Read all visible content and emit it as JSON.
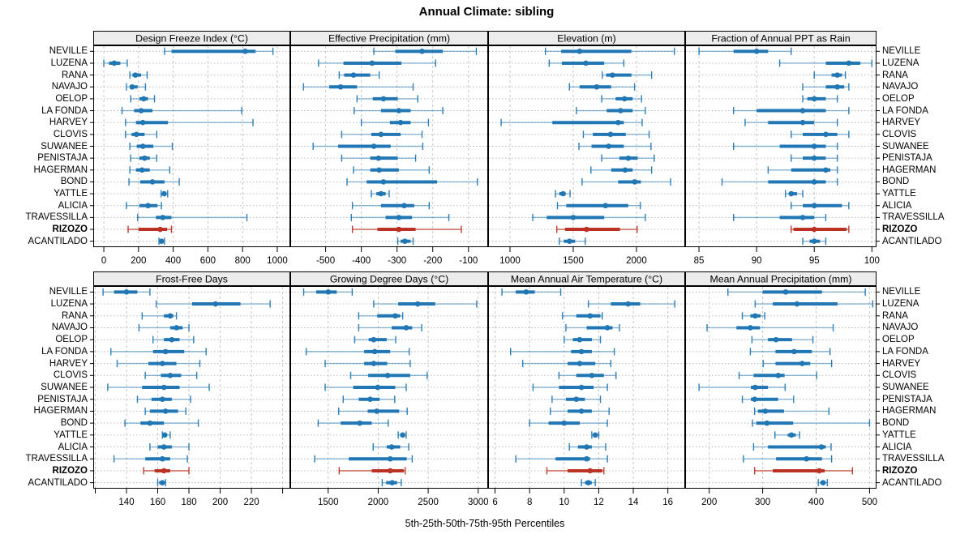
{
  "title": "Annual Climate: sibling",
  "footer": "5th-25th-50th-75th-95th Percentiles",
  "sites": [
    "NEVILLE",
    "LUZENA",
    "RANA",
    "NAVAJO",
    "OELOP",
    "LA FONDA",
    "HARVEY",
    "CLOVIS",
    "SUWANEE",
    "PENISTAJA",
    "HAGERMAN",
    "BOND",
    "YATTLE",
    "ALICIA",
    "TRAVESSILLA",
    "RIZOZO",
    "ACANTILADO"
  ],
  "highlight_site": "RIZOZO",
  "percentile_labels": [
    "5th",
    "25th",
    "50th",
    "75th",
    "95th"
  ],
  "colors": {
    "series": "#2077b4",
    "highlight": "#bb3224",
    "grid": "#c6c6c6",
    "row_guide": "#bbbbbb",
    "strip_bg": "#ececec",
    "border": "#000000",
    "background": "#ffffff"
  },
  "chart_data": [
    {
      "type": "dotplot-interval",
      "title": "Design Freeze Index (°C)",
      "row": 0,
      "col": 0,
      "xlim": [
        -61,
        1075
      ],
      "ticks": [
        0,
        200,
        400,
        600,
        800,
        1000
      ],
      "minor_ticks": [],
      "values": [
        [
          350,
          390,
          815,
          875,
          975
        ],
        [
          0,
          30,
          60,
          95,
          135
        ],
        [
          150,
          165,
          182,
          215,
          250
        ],
        [
          130,
          150,
          163,
          195,
          240
        ],
        [
          155,
          205,
          230,
          255,
          292
        ],
        [
          105,
          175,
          215,
          280,
          795
        ],
        [
          125,
          185,
          225,
          370,
          860
        ],
        [
          125,
          160,
          188,
          235,
          305
        ],
        [
          150,
          190,
          225,
          285,
          395
        ],
        [
          155,
          205,
          235,
          265,
          305
        ],
        [
          150,
          185,
          220,
          265,
          380
        ],
        [
          145,
          210,
          280,
          350,
          435
        ],
        [
          330,
          338,
          348,
          358,
          368
        ],
        [
          130,
          205,
          255,
          310,
          332
        ],
        [
          195,
          300,
          340,
          390,
          825
        ],
        [
          140,
          200,
          325,
          365,
          390
        ],
        [
          318,
          325,
          333,
          341,
          349
        ]
      ]
    },
    {
      "type": "dotplot-interval",
      "title": "Effective Precipitation (mm)",
      "row": 0,
      "col": 1,
      "xlim": [
        -599,
        -45
      ],
      "ticks": [
        -500,
        -400,
        -300,
        -200,
        -100
      ],
      "minor_ticks": [],
      "values": [
        [
          -365,
          -305,
          -230,
          -172,
          -78
        ],
        [
          -520,
          -450,
          -370,
          -288,
          -192
        ],
        [
          -462,
          -448,
          -422,
          -375,
          -350
        ],
        [
          -562,
          -490,
          -458,
          -412,
          -255
        ],
        [
          -412,
          -368,
          -338,
          -298,
          -242
        ],
        [
          -420,
          -345,
          -295,
          -262,
          -172
        ],
        [
          -400,
          -320,
          -290,
          -262,
          -212
        ],
        [
          -455,
          -372,
          -345,
          -290,
          -230
        ],
        [
          -535,
          -465,
          -365,
          -318,
          -228
        ],
        [
          -455,
          -375,
          -352,
          -298,
          -248
        ],
        [
          -422,
          -375,
          -350,
          -295,
          -210
        ],
        [
          -440,
          -385,
          -338,
          -188,
          -75
        ],
        [
          -372,
          -358,
          -345,
          -332,
          -322
        ],
        [
          -425,
          -345,
          -280,
          -252,
          -210
        ],
        [
          -428,
          -332,
          -295,
          -258,
          -155
        ],
        [
          -425,
          -355,
          -295,
          -248,
          -120
        ],
        [
          -298,
          -290,
          -278,
          -262,
          -255
        ]
      ]
    },
    {
      "type": "dotplot-interval",
      "title": "Elevation (m)",
      "row": 0,
      "col": 2,
      "xlim": [
        827,
        2385
      ],
      "ticks": [
        1000,
        1500,
        2000
      ],
      "minor_ticks": [],
      "values": [
        [
          1280,
          1405,
          1550,
          1960,
          2300
        ],
        [
          1310,
          1410,
          1600,
          1745,
          1900
        ],
        [
          1730,
          1760,
          1810,
          1960,
          2120
        ],
        [
          1470,
          1550,
          1685,
          1800,
          1985
        ],
        [
          1725,
          1835,
          1905,
          1970,
          2040
        ],
        [
          1525,
          1765,
          1875,
          1970,
          2070
        ],
        [
          930,
          1335,
          1855,
          1900,
          2045
        ],
        [
          1580,
          1655,
          1795,
          1915,
          2100
        ],
        [
          1545,
          1645,
          1780,
          1900,
          2115
        ],
        [
          1725,
          1865,
          1935,
          2010,
          2140
        ],
        [
          1640,
          1800,
          1910,
          1970,
          2120
        ],
        [
          1570,
          1855,
          1985,
          2035,
          2270
        ],
        [
          1360,
          1390,
          1420,
          1440,
          1475
        ],
        [
          1375,
          1445,
          1755,
          1935,
          2030
        ],
        [
          1180,
          1290,
          1500,
          1745,
          2070
        ],
        [
          1370,
          1435,
          1605,
          1870,
          2005
        ],
        [
          1390,
          1425,
          1470,
          1515,
          1595
        ]
      ]
    },
    {
      "type": "dotplot-interval",
      "title": "Fraction of Annual PPT as Rain",
      "row": 0,
      "col": 3,
      "xlim": [
        83.8,
        100.4
      ],
      "ticks": [
        85,
        90,
        95,
        100
      ],
      "minor_ticks": [],
      "values": [
        [
          85,
          88,
          90,
          91,
          93
        ],
        [
          92,
          96,
          98,
          99,
          100
        ],
        [
          95,
          96.5,
          97,
          97.4,
          97.7
        ],
        [
          94,
          96,
          97,
          97.6,
          98
        ],
        [
          94,
          94.4,
          95,
          96,
          97
        ],
        [
          88,
          90,
          94,
          96,
          98
        ],
        [
          89,
          91,
          94,
          95,
          97
        ],
        [
          93,
          94,
          96,
          97,
          98
        ],
        [
          88,
          92,
          95,
          96,
          97
        ],
        [
          93,
          94,
          95,
          96,
          97
        ],
        [
          91,
          93,
          96,
          96.4,
          97
        ],
        [
          87,
          91,
          95,
          96,
          97
        ],
        [
          92.5,
          92.8,
          93,
          93.5,
          94
        ],
        [
          93,
          94,
          95,
          97.4,
          98
        ],
        [
          88,
          92,
          94,
          95,
          96
        ],
        [
          93,
          93.2,
          95,
          97.8,
          98
        ],
        [
          94,
          94.6,
          95,
          95.5,
          96
        ]
      ]
    },
    {
      "type": "dotplot-interval",
      "title": "Frost-Free Days",
      "row": 1,
      "col": 0,
      "xlim": [
        118.7,
        244.9
      ],
      "ticks": [
        140,
        160,
        180,
        200,
        220
      ],
      "minor_ticks": [
        120,
        240
      ],
      "values": [
        [
          125,
          132,
          140,
          147,
          155
        ],
        [
          159,
          182,
          197,
          213,
          232
        ],
        [
          150,
          164,
          168,
          170,
          172
        ],
        [
          148,
          168,
          172,
          176,
          180
        ],
        [
          157,
          164,
          169,
          174,
          183
        ],
        [
          130,
          157,
          165,
          177,
          191
        ],
        [
          134,
          154,
          163,
          172,
          187
        ],
        [
          152,
          162,
          168,
          175,
          185
        ],
        [
          128,
          150,
          164,
          174,
          193
        ],
        [
          147,
          156,
          163,
          169,
          181
        ],
        [
          152,
          155,
          165,
          173,
          178
        ],
        [
          139,
          149,
          155,
          164,
          186
        ],
        [
          163,
          163.5,
          164.5,
          166,
          168
        ],
        [
          155,
          160,
          164,
          169,
          180
        ],
        [
          132,
          152,
          163,
          168,
          179
        ],
        [
          151,
          158,
          164,
          168,
          180
        ],
        [
          160,
          161,
          163,
          164,
          165
        ]
      ]
    },
    {
      "type": "dotplot-interval",
      "title": "Growing Degree Days (°C)",
      "row": 1,
      "col": 1,
      "xlim": [
        1121,
        3099
      ],
      "ticks": [
        1500,
        2000,
        2500,
        3000
      ],
      "minor_ticks": [],
      "values": [
        [
          1255,
          1380,
          1500,
          1585,
          1740
        ],
        [
          1955,
          2200,
          2395,
          2570,
          2985
        ],
        [
          1805,
          1990,
          2170,
          2220,
          2245
        ],
        [
          1805,
          2135,
          2280,
          2340,
          2435
        ],
        [
          1765,
          1905,
          1955,
          2085,
          2175
        ],
        [
          1280,
          1860,
          1965,
          2120,
          2310
        ],
        [
          1470,
          1860,
          1955,
          2090,
          2320
        ],
        [
          1725,
          1900,
          2095,
          2320,
          2490
        ],
        [
          1470,
          1750,
          1995,
          2170,
          2280
        ],
        [
          1650,
          1805,
          1920,
          2015,
          2165
        ],
        [
          1605,
          1895,
          1985,
          2210,
          2290
        ],
        [
          1400,
          1625,
          1815,
          1935,
          2100
        ],
        [
          2200,
          2220,
          2245,
          2265,
          2280
        ],
        [
          1950,
          2085,
          2135,
          2220,
          2305
        ],
        [
          1365,
          1705,
          2120,
          2285,
          2340
        ],
        [
          1610,
          1935,
          2120,
          2255,
          2270
        ],
        [
          2040,
          2080,
          2140,
          2190,
          2230
        ]
      ]
    },
    {
      "type": "dotplot-interval",
      "title": "Mean Annual Air Temperature (°C)",
      "row": 1,
      "col": 2,
      "xlim": [
        5.6,
        17
      ],
      "ticks": [
        6,
        8,
        10,
        12,
        14,
        16
      ],
      "minor_ticks": [],
      "values": [
        [
          6.4,
          7.2,
          7.8,
          8.3,
          9.8
        ],
        [
          11.4,
          12.7,
          13.7,
          14.4,
          16.4
        ],
        [
          9.9,
          10.7,
          11.5,
          12.1,
          12.2
        ],
        [
          10.1,
          11.3,
          12.5,
          12.8,
          13.2
        ],
        [
          10.0,
          10.5,
          10.9,
          11.6,
          12.1
        ],
        [
          6.9,
          10.4,
          11.0,
          11.6,
          12.9
        ],
        [
          7.6,
          10.2,
          10.9,
          11.8,
          12.7
        ],
        [
          9.7,
          10.7,
          11.6,
          12.3,
          13.0
        ],
        [
          8.2,
          9.7,
          11.0,
          11.7,
          12.5
        ],
        [
          9.3,
          10.1,
          10.7,
          11.2,
          12.1
        ],
        [
          9.2,
          10.2,
          11.0,
          11.6,
          12.6
        ],
        [
          8.0,
          9.1,
          10.0,
          10.9,
          12.5
        ],
        [
          11.6,
          11.7,
          11.8,
          11.9,
          12.0
        ],
        [
          10.3,
          10.8,
          11.3,
          11.6,
          12.4
        ],
        [
          7.2,
          9.5,
          11.3,
          11.5,
          12.5
        ],
        [
          9.0,
          10.2,
          11.5,
          12.2,
          12.3
        ],
        [
          11.0,
          11.2,
          11.4,
          11.6,
          11.8
        ]
      ]
    },
    {
      "type": "dotplot-interval",
      "title": "Mean Annual Precipitation (mm)",
      "row": 1,
      "col": 3,
      "xlim": [
        155,
        513
      ],
      "ticks": [
        200,
        300,
        400,
        500
      ],
      "minor_ticks": [],
      "values": [
        [
          235,
          300,
          343,
          411,
          492
        ],
        [
          286,
          319,
          364,
          440,
          506
        ],
        [
          262,
          277,
          286,
          296,
          304
        ],
        [
          196,
          251,
          277,
          295,
          432
        ],
        [
          280,
          310,
          325,
          355,
          394
        ],
        [
          277,
          324,
          359,
          392,
          426
        ],
        [
          301,
          324,
          374,
          389,
          429
        ],
        [
          256,
          283,
          329,
          341,
          401
        ],
        [
          181,
          278,
          286,
          310,
          342
        ],
        [
          262,
          278,
          285,
          329,
          358
        ],
        [
          285,
          291,
          305,
          340,
          424
        ],
        [
          281,
          288,
          308,
          357,
          500
        ],
        [
          323,
          347,
          354,
          362,
          369
        ],
        [
          283,
          310,
          410,
          418,
          428
        ],
        [
          264,
          325,
          382,
          411,
          429
        ],
        [
          285,
          319,
          406,
          416,
          468
        ],
        [
          404,
          408,
          413,
          418,
          421
        ]
      ]
    }
  ]
}
